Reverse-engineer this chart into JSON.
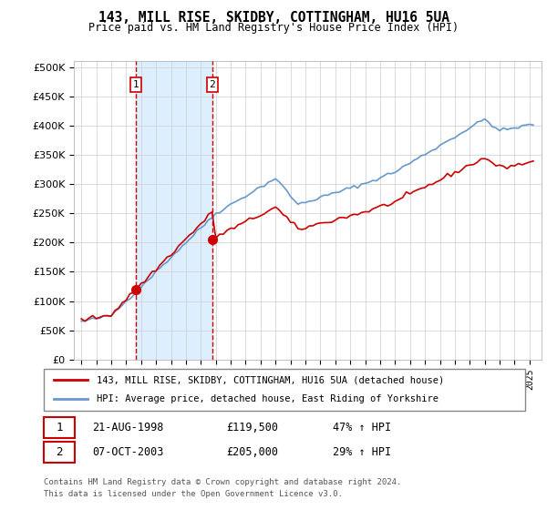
{
  "title": "143, MILL RISE, SKIDBY, COTTINGHAM, HU16 5UA",
  "subtitle": "Price paid vs. HM Land Registry's House Price Index (HPI)",
  "legend_line1": "143, MILL RISE, SKIDBY, COTTINGHAM, HU16 5UA (detached house)",
  "legend_line2": "HPI: Average price, detached house, East Riding of Yorkshire",
  "footer_line1": "Contains HM Land Registry data © Crown copyright and database right 2024.",
  "footer_line2": "This data is licensed under the Open Government Licence v3.0.",
  "sale1_date": "21-AUG-1998",
  "sale1_price": "£119,500",
  "sale1_hpi": "47% ↑ HPI",
  "sale2_date": "07-OCT-2003",
  "sale2_price": "£205,000",
  "sale2_hpi": "29% ↑ HPI",
  "sale1_year": 1998.64,
  "sale1_value": 119500,
  "sale2_year": 2003.77,
  "sale2_value": 205000,
  "hpi_color": "#6699cc",
  "property_color": "#cc0000",
  "vline_color": "#cc0000",
  "shade_color": "#ddeeff",
  "ylim_max": 510000,
  "ylim_min": 0,
  "xlim_min": 1994.5,
  "xlim_max": 2025.8
}
